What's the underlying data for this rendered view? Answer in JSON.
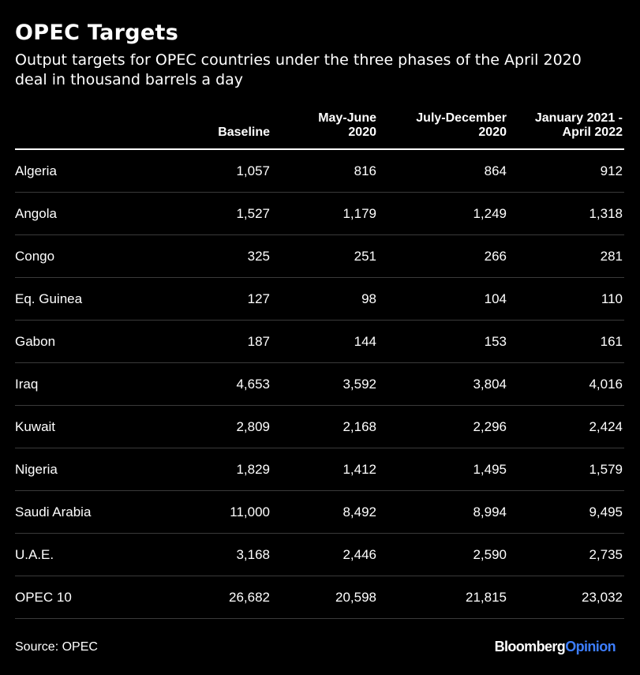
{
  "title": "OPEC Targets",
  "subtitle": "Output targets for OPEC countries under the three phases of the April 2020 deal in thousand barrels a day",
  "source": "Source: OPEC",
  "brand": {
    "part1": "Bloomberg",
    "part2": "Opinion",
    "colors": {
      "part1": "#ffffff",
      "part2": "#3d7eff"
    }
  },
  "colors": {
    "background": "#000000",
    "text": "#ffffff",
    "row_rule": "#3a3a3a"
  },
  "chart_data": {
    "type": "table",
    "columns": [
      "",
      "Baseline",
      "May-June 2020",
      "July-December 2020",
      "January 2021 - April 2022"
    ],
    "header_lines": [
      [
        ""
      ],
      [
        "Baseline"
      ],
      [
        "May-June",
        "2020"
      ],
      [
        "July-December",
        "2020"
      ],
      [
        "January 2021 -",
        "April 2022"
      ]
    ],
    "rows": [
      [
        "Algeria",
        "1,057",
        "816",
        "864",
        "912"
      ],
      [
        "Angola",
        "1,527",
        "1,179",
        "1,249",
        "1,318"
      ],
      [
        "Congo",
        "325",
        "251",
        "266",
        "281"
      ],
      [
        "Eq. Guinea",
        "127",
        "98",
        "104",
        "110"
      ],
      [
        "Gabon",
        "187",
        "144",
        "153",
        "161"
      ],
      [
        "Iraq",
        "4,653",
        "3,592",
        "3,804",
        "4,016"
      ],
      [
        "Kuwait",
        "2,809",
        "2,168",
        "2,296",
        "2,424"
      ],
      [
        "Nigeria",
        "1,829",
        "1,412",
        "1,495",
        "1,579"
      ],
      [
        "Saudi Arabia",
        "11,000",
        "8,492",
        "8,994",
        "9,495"
      ],
      [
        "U.A.E.",
        "3,168",
        "2,446",
        "2,590",
        "2,735"
      ],
      [
        "OPEC 10",
        "26,682",
        "20,598",
        "21,815",
        "23,032"
      ]
    ]
  }
}
